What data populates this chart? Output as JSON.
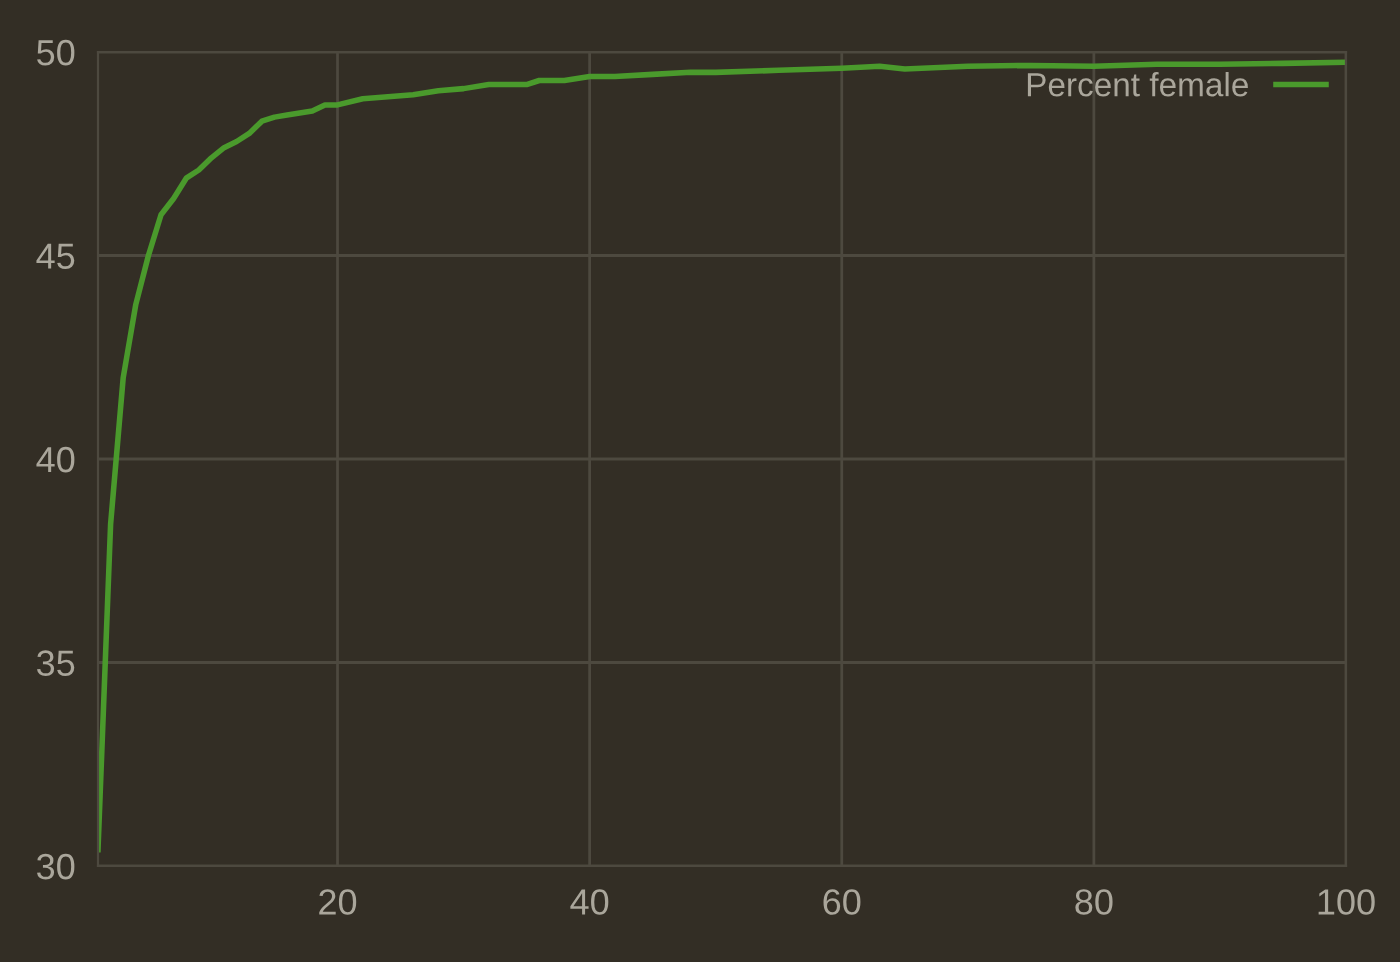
{
  "chart_data": {
    "type": "line",
    "xlim": [
      1,
      100
    ],
    "ylim": [
      30,
      50
    ],
    "xticks": [
      20,
      40,
      60,
      80,
      100
    ],
    "yticks": [
      30,
      35,
      40,
      45,
      50
    ],
    "grid": true,
    "legend": "top right",
    "series": [
      {
        "name": "Percent female",
        "color": "#4a9a2c",
        "x": [
          1,
          2,
          3,
          4,
          5,
          6,
          7,
          8,
          9,
          10,
          11,
          12,
          13,
          14,
          15,
          16,
          17,
          18,
          19,
          20,
          22,
          24,
          26,
          28,
          30,
          32,
          35,
          36,
          38,
          40,
          42,
          45,
          48,
          50,
          55,
          60,
          63,
          65,
          70,
          75,
          80,
          85,
          90,
          95,
          100
        ],
        "values": [
          30.4,
          38.4,
          42.0,
          43.8,
          45.0,
          46.0,
          46.4,
          46.9,
          47.1,
          47.4,
          47.65,
          47.8,
          48.0,
          48.3,
          48.4,
          48.45,
          48.5,
          48.55,
          48.7,
          48.7,
          48.85,
          48.9,
          48.95,
          49.05,
          49.1,
          49.2,
          49.2,
          49.3,
          49.3,
          49.4,
          49.4,
          49.45,
          49.5,
          49.5,
          49.55,
          49.6,
          49.65,
          49.58,
          49.65,
          49.67,
          49.65,
          49.7,
          49.7,
          49.72,
          49.75
        ]
      }
    ]
  }
}
